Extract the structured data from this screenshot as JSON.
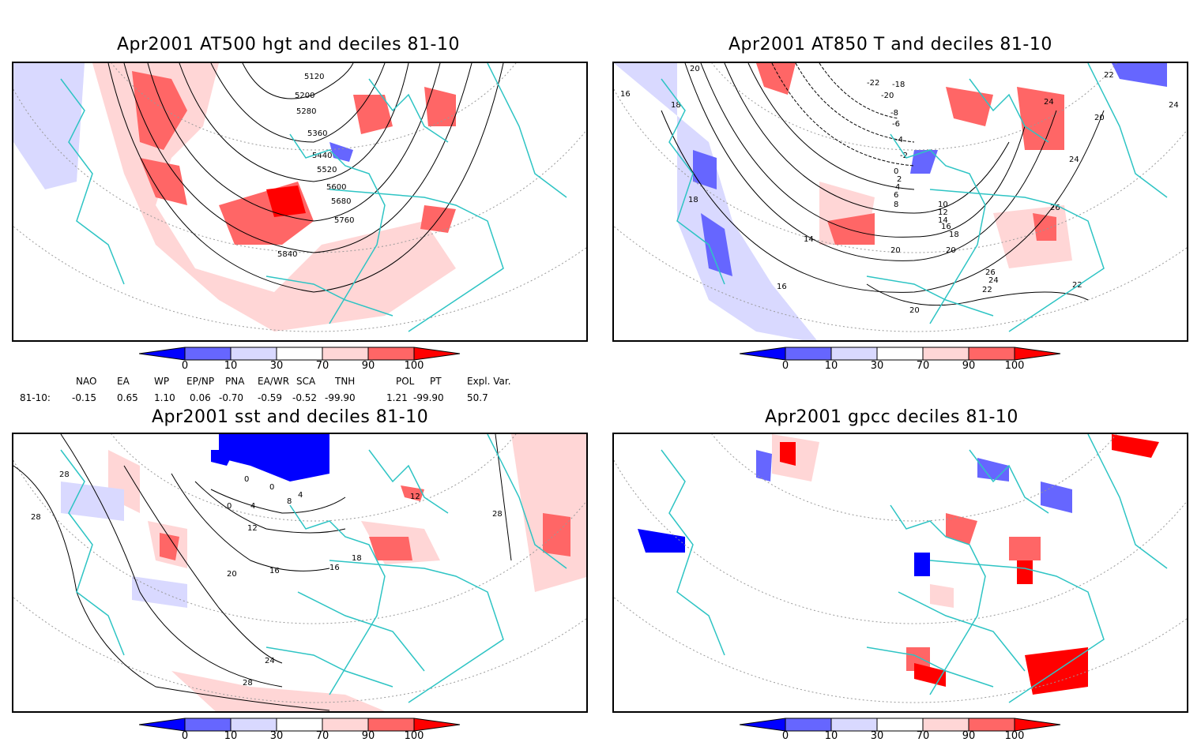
{
  "panels": {
    "hgt": {
      "title": "Apr2001 AT500 hgt and deciles 81-10",
      "contour_labels": [
        "5120",
        "5200",
        "5280",
        "5360",
        "5440",
        "5520",
        "5600",
        "5680",
        "5760",
        "5840"
      ]
    },
    "t850": {
      "title": "Apr2001 AT850 T and deciles 81-10",
      "contour_labels": [
        "-22",
        "-20",
        "-18",
        "-8",
        "-6",
        "-4",
        "-2",
        "0",
        "2",
        "4",
        "6",
        "8",
        "10",
        "12",
        "14",
        "16",
        "18",
        "20",
        "22",
        "24",
        "26",
        "16",
        "18",
        "18",
        "20",
        "14",
        "16",
        "20",
        "22",
        "24",
        "26",
        "20",
        "24",
        "20",
        "22",
        "24"
      ]
    },
    "sst": {
      "title": "Apr2001 sst and deciles 81-10",
      "contour_labels": [
        "28",
        "28",
        "0",
        "0",
        "4",
        "8",
        "12",
        "16",
        "16",
        "20",
        "24",
        "28",
        "28",
        "18",
        "12",
        "0",
        "4"
      ]
    },
    "gpcc": {
      "title": "Apr2001 gpcc deciles 81-10"
    }
  },
  "colorbar": {
    "ticks": [
      "0",
      "10",
      "30",
      "70",
      "90",
      "100"
    ],
    "colors": [
      "#0000ff",
      "#6666ff",
      "#d9d9ff",
      "#ffffff",
      "#ffd6d6",
      "#ff6666",
      "#ff0000"
    ]
  },
  "indices": {
    "headers": [
      "NAO",
      "EA",
      "WP",
      "EP/NP",
      "PNA",
      "EA/WR",
      "SCA",
      "TNH",
      "POL",
      "PT",
      "Expl. Var."
    ],
    "row_label": "81-10:",
    "values": [
      "-0.15",
      "0.65",
      "1.10",
      "0.06",
      "-0.70",
      "-0.59",
      "-0.52",
      "-99.90",
      "1.21",
      "-99.90",
      "50.7"
    ]
  },
  "colors": {
    "coast": "#2ec4c4",
    "frame": "#000000",
    "grid": "#999999"
  }
}
